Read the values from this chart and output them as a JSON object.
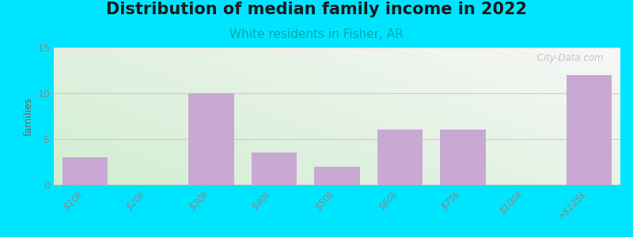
{
  "title": "Distribution of median family income in 2022",
  "subtitle": "White residents in Fisher, AR",
  "categories": [
    "$10k",
    "$20k",
    "$30k",
    "$40k",
    "$50k",
    "$60k",
    "$75k",
    "$100k",
    ">$125k"
  ],
  "values": [
    3,
    0,
    10,
    3.5,
    2,
    6,
    6,
    0,
    12
  ],
  "bar_color": "#c9a8d4",
  "bar_alpha": 1.0,
  "background_outer": "#00e5ff",
  "plot_bg_color_topleft": "#d4ecd4",
  "plot_bg_color_bottomright": "#f8f8f8",
  "ylabel": "families",
  "ylim": [
    0,
    15
  ],
  "yticks": [
    0,
    5,
    10,
    15
  ],
  "title_fontsize": 15,
  "subtitle_fontsize": 11,
  "subtitle_color": "#00aaaa",
  "watermark": "City-Data.com",
  "grid_color": "#cccccc",
  "tick_label_color": "#888888",
  "bar_width": 0.72
}
